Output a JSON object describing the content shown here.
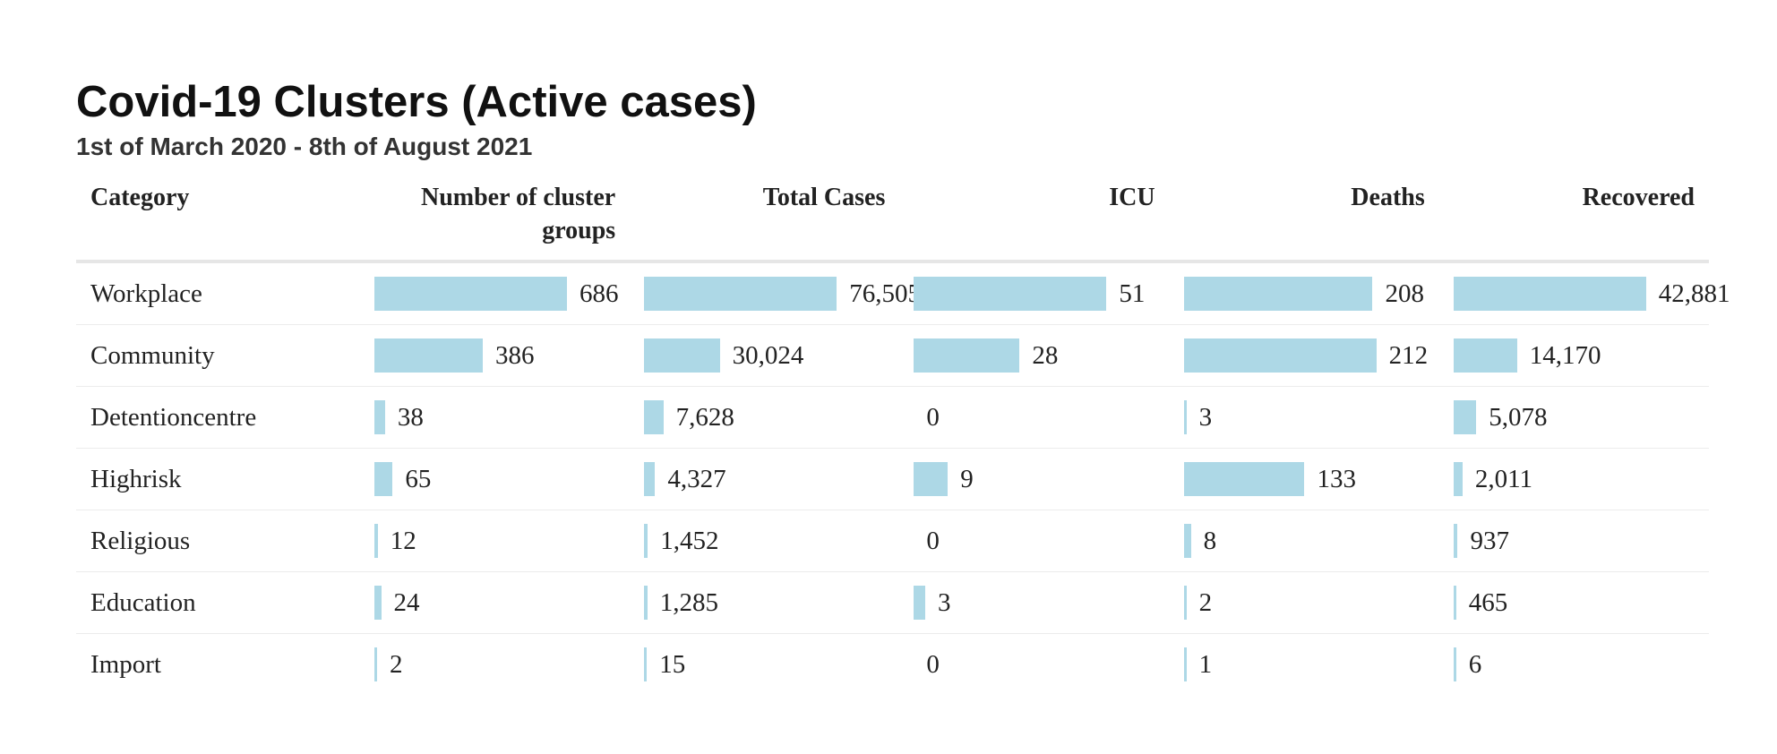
{
  "title": "Covid-19 Clusters (Active cases)",
  "subtitle": "1st of March 2020 - 8th of August 2021",
  "colors": {
    "bar": "#add8e6"
  },
  "columns": [
    "Category",
    "Number of cluster groups",
    "Total Cases",
    "ICU",
    "Deaths",
    "Recovered"
  ],
  "rows": [
    {
      "category": "Workplace",
      "values": [
        686,
        76505,
        51,
        208,
        42881
      ],
      "labels": [
        "686",
        "76,505",
        "51",
        "208",
        "42,881"
      ]
    },
    {
      "category": "Community",
      "values": [
        386,
        30024,
        28,
        212,
        14170
      ],
      "labels": [
        "386",
        "30,024",
        "28",
        "212",
        "14,170"
      ]
    },
    {
      "category": "Detentioncentre",
      "values": [
        38,
        7628,
        0,
        3,
        5078
      ],
      "labels": [
        "38",
        "7,628",
        "0",
        "3",
        "5,078"
      ]
    },
    {
      "category": "Highrisk",
      "values": [
        65,
        4327,
        9,
        133,
        2011
      ],
      "labels": [
        "65",
        "4,327",
        "9",
        "133",
        "2,011"
      ]
    },
    {
      "category": "Religious",
      "values": [
        12,
        1452,
        0,
        8,
        937
      ],
      "labels": [
        "12",
        "1,452",
        "0",
        "8",
        "937"
      ]
    },
    {
      "category": "Education",
      "values": [
        24,
        1285,
        3,
        2,
        465
      ],
      "labels": [
        "24",
        "1,285",
        "3",
        "2",
        "465"
      ]
    },
    {
      "category": "Import",
      "values": [
        2,
        15,
        0,
        1,
        6
      ],
      "labels": [
        "2",
        "15",
        "0",
        "1",
        "6"
      ]
    }
  ],
  "chart_data": {
    "type": "table",
    "title": "Covid-19 Clusters (Active cases)",
    "subtitle": "1st of March 2020 - 8th of August 2021",
    "categories": [
      "Workplace",
      "Community",
      "Detentioncentre",
      "Highrisk",
      "Religious",
      "Education",
      "Import"
    ],
    "series": [
      {
        "name": "Number of cluster groups",
        "values": [
          686,
          386,
          38,
          65,
          12,
          24,
          2
        ]
      },
      {
        "name": "Total Cases",
        "values": [
          76505,
          30024,
          7628,
          4327,
          1452,
          1285,
          15
        ]
      },
      {
        "name": "ICU",
        "values": [
          51,
          28,
          0,
          9,
          0,
          3,
          0
        ]
      },
      {
        "name": "Deaths",
        "values": [
          208,
          212,
          3,
          133,
          8,
          2,
          1
        ]
      },
      {
        "name": "Recovered",
        "values": [
          42881,
          14170,
          5078,
          2011,
          937,
          465,
          6
        ]
      }
    ]
  }
}
